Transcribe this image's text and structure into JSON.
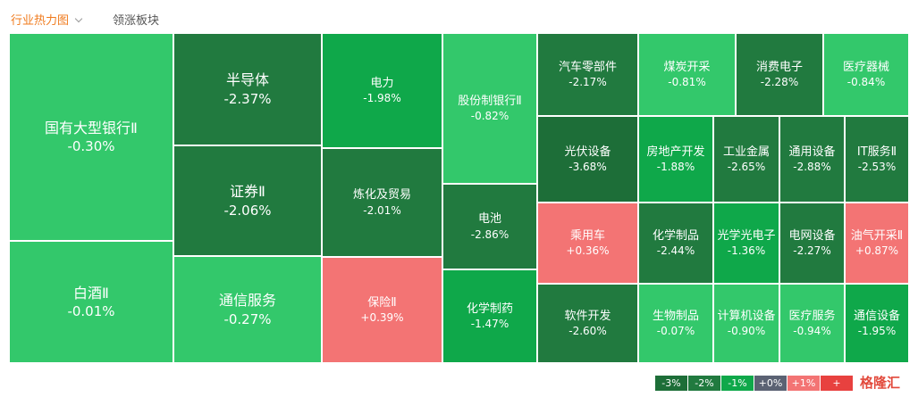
{
  "header": {
    "tabs": [
      "行业热力图",
      "领涨板块"
    ]
  },
  "tiles": [
    {
      "name": "国有大型银行Ⅱ",
      "change": "-0.30%",
      "color": "#33c86b"
    },
    {
      "name": "白酒Ⅱ",
      "change": "-0.01%",
      "color": "#33c86b"
    },
    {
      "name": "半导体",
      "change": "-2.37%",
      "color": "#217a3f"
    },
    {
      "name": "证券Ⅱ",
      "change": "-2.06%",
      "color": "#217a3f"
    },
    {
      "name": "通信服务",
      "change": "-0.27%",
      "color": "#33c86b"
    },
    {
      "name": "电力",
      "change": "-1.98%",
      "color": "#0fa84a"
    },
    {
      "name": "炼化及贸易",
      "change": "-2.01%",
      "color": "#217a3f"
    },
    {
      "name": "保险Ⅱ",
      "change": "+0.39%",
      "color": "#f37474"
    },
    {
      "name": "股份制银行Ⅱ",
      "change": "-0.82%",
      "color": "#33c86b"
    },
    {
      "name": "电池",
      "change": "-2.86%",
      "color": "#217a3f"
    },
    {
      "name": "化学制药",
      "change": "-1.47%",
      "color": "#0fa84a"
    },
    {
      "name": "汽车零部件",
      "change": "-2.17%",
      "color": "#217a3f"
    },
    {
      "name": "光伏设备",
      "change": "-3.68%",
      "color": "#1d6e38"
    },
    {
      "name": "乘用车",
      "change": "+0.36%",
      "color": "#f37474"
    },
    {
      "name": "软件开发",
      "change": "-2.60%",
      "color": "#217a3f"
    },
    {
      "name": "煤炭开采",
      "change": "-0.81%",
      "color": "#33c86b"
    },
    {
      "name": "消费电子",
      "change": "-2.28%",
      "color": "#217a3f"
    },
    {
      "name": "医疗器械",
      "change": "-0.84%",
      "color": "#33c86b"
    },
    {
      "name": "房地产开发",
      "change": "-1.88%",
      "color": "#0fa84a"
    },
    {
      "name": "工业金属",
      "change": "-2.65%",
      "color": "#217a3f"
    },
    {
      "name": "通用设备",
      "change": "-2.88%",
      "color": "#217a3f"
    },
    {
      "name": "IT服务Ⅱ",
      "change": "-2.53%",
      "color": "#217a3f"
    },
    {
      "name": "化学制品",
      "change": "-2.44%",
      "color": "#217a3f"
    },
    {
      "name": "光学光电子",
      "change": "-1.36%",
      "color": "#0fa84a"
    },
    {
      "name": "电网设备",
      "change": "-2.27%",
      "color": "#217a3f"
    },
    {
      "name": "油气开采Ⅱ",
      "change": "+0.87%",
      "color": "#f37474"
    },
    {
      "name": "生物制品",
      "change": "-0.07%",
      "color": "#33c86b"
    },
    {
      "name": "计算机设备",
      "change": "-0.90%",
      "color": "#33c86b"
    },
    {
      "name": "医疗服务",
      "change": "-0.94%",
      "color": "#33c86b"
    },
    {
      "name": "通信设备",
      "change": "-1.95%",
      "color": "#0fa84a"
    }
  ],
  "legend": [
    {
      "label": "-3%",
      "color": "#1d6e38"
    },
    {
      "label": "-2%",
      "color": "#217a3f"
    },
    {
      "label": "-1%",
      "color": "#0fa84a"
    },
    {
      "label": "+0%",
      "color": "#5b6273"
    },
    {
      "label": "+1%",
      "color": "#f37474"
    },
    {
      "label": "+",
      "color": "#e8413f"
    }
  ],
  "watermark": "格隆汇"
}
